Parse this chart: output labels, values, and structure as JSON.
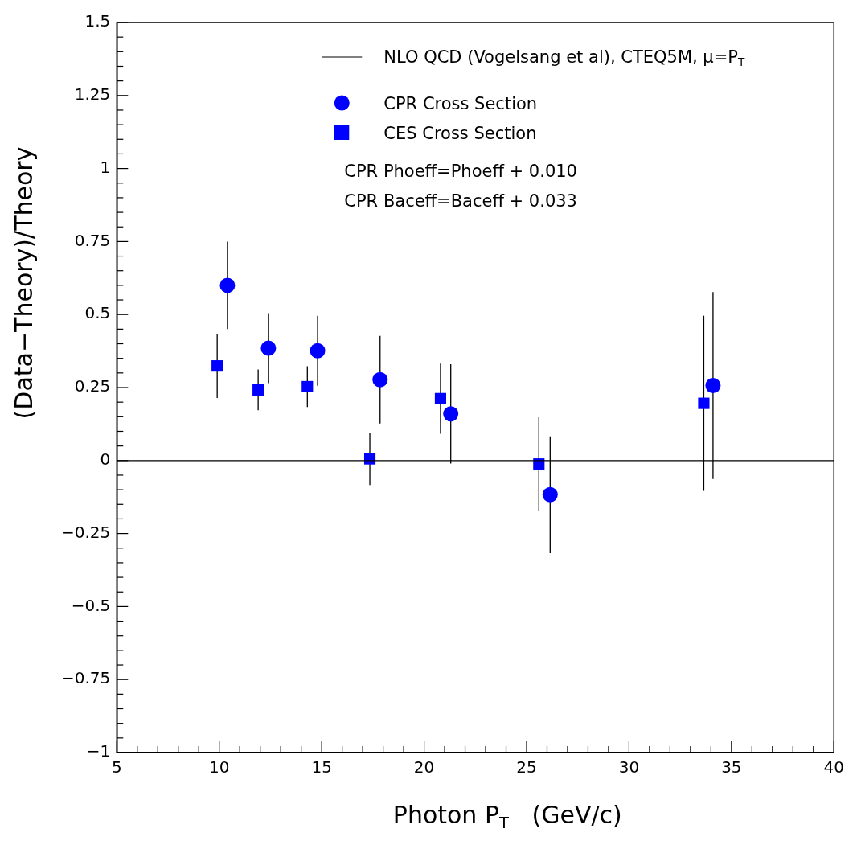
{
  "chart_data": {
    "type": "scatter",
    "xlabel": "Photon P$_{T}$   (GeV/c)",
    "ylabel": "(Data−Theory)/Theory",
    "xlim": [
      5,
      40
    ],
    "ylim": [
      -1,
      1.5
    ],
    "xticks": [
      5,
      {
        "value": 6,
        "label": null
      },
      {
        "value": 7,
        "label": null
      },
      {
        "value": 8,
        "label": null
      },
      {
        "value": 9,
        "label": null
      },
      10,
      {
        "value": 11,
        "label": null
      },
      {
        "value": 12,
        "label": null
      },
      {
        "value": 13,
        "label": null
      },
      {
        "value": 14,
        "label": null
      },
      15,
      {
        "value": 16,
        "label": null
      },
      {
        "value": 17,
        "label": null
      },
      {
        "value": 18,
        "label": null
      },
      {
        "value": 19,
        "label": null
      },
      20,
      {
        "value": 21,
        "label": null
      },
      {
        "value": 22,
        "label": null
      },
      {
        "value": 23,
        "label": null
      },
      {
        "value": 24,
        "label": null
      },
      25,
      {
        "value": 26,
        "label": null
      },
      {
        "value": 27,
        "label": null
      },
      {
        "value": 28,
        "label": null
      },
      {
        "value": 29,
        "label": null
      },
      30,
      {
        "value": 31,
        "label": null
      },
      {
        "value": 32,
        "label": null
      },
      {
        "value": 33,
        "label": null
      },
      {
        "value": 34,
        "label": null
      },
      35,
      {
        "value": 36,
        "label": null
      },
      {
        "value": 37,
        "label": null
      },
      {
        "value": 38,
        "label": null
      },
      {
        "value": 39,
        "label": null
      },
      40
    ],
    "yticks": [
      {
        "value": -1,
        "label": "−1"
      },
      {
        "value": -0.95,
        "label": null
      },
      {
        "value": -0.9,
        "label": null
      },
      {
        "value": -0.85,
        "label": null
      },
      {
        "value": -0.8,
        "label": null
      },
      {
        "value": -0.75,
        "label": "−0.75"
      },
      {
        "value": -0.7,
        "label": null
      },
      {
        "value": -0.65,
        "label": null
      },
      {
        "value": -0.6,
        "label": null
      },
      {
        "value": -0.55,
        "label": null
      },
      {
        "value": -0.5,
        "label": "−0.5"
      },
      {
        "value": -0.45,
        "label": null
      },
      {
        "value": -0.4,
        "label": null
      },
      {
        "value": -0.35,
        "label": null
      },
      {
        "value": -0.3,
        "label": null
      },
      {
        "value": -0.25,
        "label": "−0.25"
      },
      {
        "value": -0.2,
        "label": null
      },
      {
        "value": -0.15,
        "label": null
      },
      {
        "value": -0.1,
        "label": null
      },
      {
        "value": -0.05,
        "label": null
      },
      0,
      {
        "value": 0.05,
        "label": null
      },
      {
        "value": 0.1,
        "label": null
      },
      {
        "value": 0.15,
        "label": null
      },
      {
        "value": 0.2,
        "label": null
      },
      0.25,
      {
        "value": 0.3,
        "label": null
      },
      {
        "value": 0.35,
        "label": null
      },
      {
        "value": 0.4,
        "label": null
      },
      {
        "value": 0.45,
        "label": null
      },
      0.5,
      {
        "value": 0.55,
        "label": null
      },
      {
        "value": 0.6,
        "label": null
      },
      {
        "value": 0.65,
        "label": null
      },
      {
        "value": 0.7,
        "label": null
      },
      0.75,
      {
        "value": 0.8,
        "label": null
      },
      {
        "value": 0.85,
        "label": null
      },
      {
        "value": 0.9,
        "label": null
      },
      {
        "value": 0.95,
        "label": null
      },
      1,
      {
        "value": 1.05,
        "label": null
      },
      {
        "value": 1.1,
        "label": null
      },
      {
        "value": 1.15,
        "label": null
      },
      {
        "value": 1.2,
        "label": null
      },
      1.25,
      {
        "value": 1.3,
        "label": null
      },
      {
        "value": 1.35,
        "label": null
      },
      {
        "value": 1.4,
        "label": null
      },
      {
        "value": 1.45,
        "label": null
      },
      1.5
    ],
    "grid": false,
    "legend": "top right",
    "annotations": [
      "CPR Phoeff=Phoeff + 0.010",
      "CPR Baceff=Baceff + 0.033"
    ],
    "series": [
      {
        "name": "NLO QCD (Vogelsang et al), CTEQ5M, μ=P$_{T}$",
        "type": "line",
        "color": "#000000",
        "line_style": "solid",
        "marker": "none",
        "x": [
          5,
          40
        ],
        "values": [
          0,
          0
        ]
      },
      {
        "name": "CPR Cross Section",
        "type": "scatter",
        "color": "#0000ff",
        "marker": "circle",
        "x": [
          10.4,
          12.4,
          14.8,
          17.85,
          21.3,
          26.15,
          34.1
        ],
        "values": [
          0.6,
          0.385,
          0.376,
          0.277,
          0.16,
          -0.117,
          0.257
        ],
        "errors": [
          0.15,
          0.12,
          0.12,
          0.15,
          0.17,
          0.2,
          0.32
        ]
      },
      {
        "name": "CES Cross Section",
        "type": "scatter",
        "color": "#0000ff",
        "marker": "square",
        "x": [
          9.9,
          11.9,
          14.3,
          17.35,
          20.8,
          25.6,
          33.65
        ],
        "values": [
          0.324,
          0.242,
          0.253,
          0.006,
          0.212,
          -0.012,
          0.196
        ],
        "errors": [
          0.11,
          0.07,
          0.07,
          0.09,
          0.12,
          0.16,
          0.3
        ]
      }
    ]
  }
}
